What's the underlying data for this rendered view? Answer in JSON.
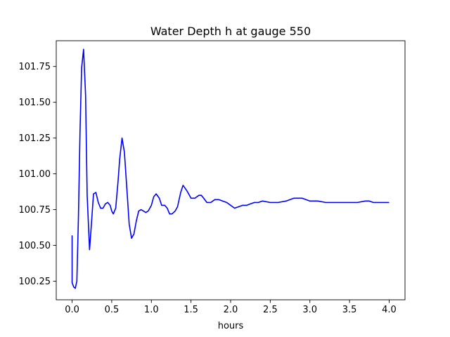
{
  "chart_data": {
    "type": "line",
    "title": "Water Depth h at gauge 550",
    "xlabel": "hours",
    "ylabel": "",
    "xlim": [
      -0.2,
      4.2
    ],
    "ylim": [
      100.12,
      101.93
    ],
    "xticks": [
      0.0,
      0.5,
      1.0,
      1.5,
      2.0,
      2.5,
      3.0,
      3.5,
      4.0
    ],
    "xtick_labels": [
      "0.0",
      "0.5",
      "1.0",
      "1.5",
      "2.0",
      "2.5",
      "3.0",
      "3.5",
      "4.0"
    ],
    "yticks": [
      100.25,
      100.5,
      100.75,
      101.0,
      101.25,
      101.5,
      101.75
    ],
    "ytick_labels": [
      "100.25",
      "100.50",
      "100.75",
      "101.00",
      "101.25",
      "101.50",
      "101.75"
    ],
    "grid": false,
    "series": [
      {
        "color": "#0000ff",
        "x": [
          0.0,
          0.0,
          0.02,
          0.04,
          0.06,
          0.08,
          0.1,
          0.12,
          0.145,
          0.17,
          0.19,
          0.22,
          0.24,
          0.27,
          0.3,
          0.33,
          0.36,
          0.39,
          0.42,
          0.45,
          0.48,
          0.5,
          0.52,
          0.55,
          0.58,
          0.6,
          0.63,
          0.66,
          0.7,
          0.72,
          0.75,
          0.78,
          0.81,
          0.84,
          0.87,
          0.9,
          0.93,
          0.96,
          1.0,
          1.03,
          1.06,
          1.1,
          1.13,
          1.17,
          1.2,
          1.23,
          1.26,
          1.3,
          1.33,
          1.37,
          1.4,
          1.45,
          1.5,
          1.55,
          1.6,
          1.63,
          1.66,
          1.7,
          1.75,
          1.8,
          1.85,
          1.9,
          1.95,
          2.0,
          2.05,
          2.1,
          2.15,
          2.2,
          2.25,
          2.3,
          2.35,
          2.4,
          2.5,
          2.6,
          2.7,
          2.75,
          2.8,
          2.9,
          2.95,
          3.0,
          3.1,
          3.2,
          3.3,
          3.4,
          3.5,
          3.55,
          3.6,
          3.7,
          3.75,
          3.8,
          3.9,
          4.0
        ],
        "y": [
          100.57,
          100.24,
          100.21,
          100.2,
          100.25,
          100.7,
          101.3,
          101.74,
          101.87,
          101.55,
          100.85,
          100.47,
          100.62,
          100.86,
          100.87,
          100.8,
          100.76,
          100.76,
          100.79,
          100.8,
          100.78,
          100.74,
          100.72,
          100.76,
          100.95,
          101.1,
          101.25,
          101.15,
          100.82,
          100.65,
          100.55,
          100.58,
          100.67,
          100.74,
          100.75,
          100.74,
          100.73,
          100.74,
          100.78,
          100.84,
          100.86,
          100.83,
          100.78,
          100.78,
          100.76,
          100.72,
          100.72,
          100.74,
          100.77,
          100.87,
          100.92,
          100.88,
          100.83,
          100.83,
          100.85,
          100.85,
          100.83,
          100.8,
          100.8,
          100.82,
          100.82,
          100.81,
          100.8,
          100.78,
          100.76,
          100.77,
          100.78,
          100.78,
          100.79,
          100.8,
          100.8,
          100.81,
          100.8,
          100.8,
          100.81,
          100.82,
          100.83,
          100.83,
          100.82,
          100.81,
          100.81,
          100.8,
          100.8,
          100.8,
          100.8,
          100.8,
          100.8,
          100.81,
          100.81,
          100.8,
          100.8,
          100.8
        ]
      }
    ]
  }
}
